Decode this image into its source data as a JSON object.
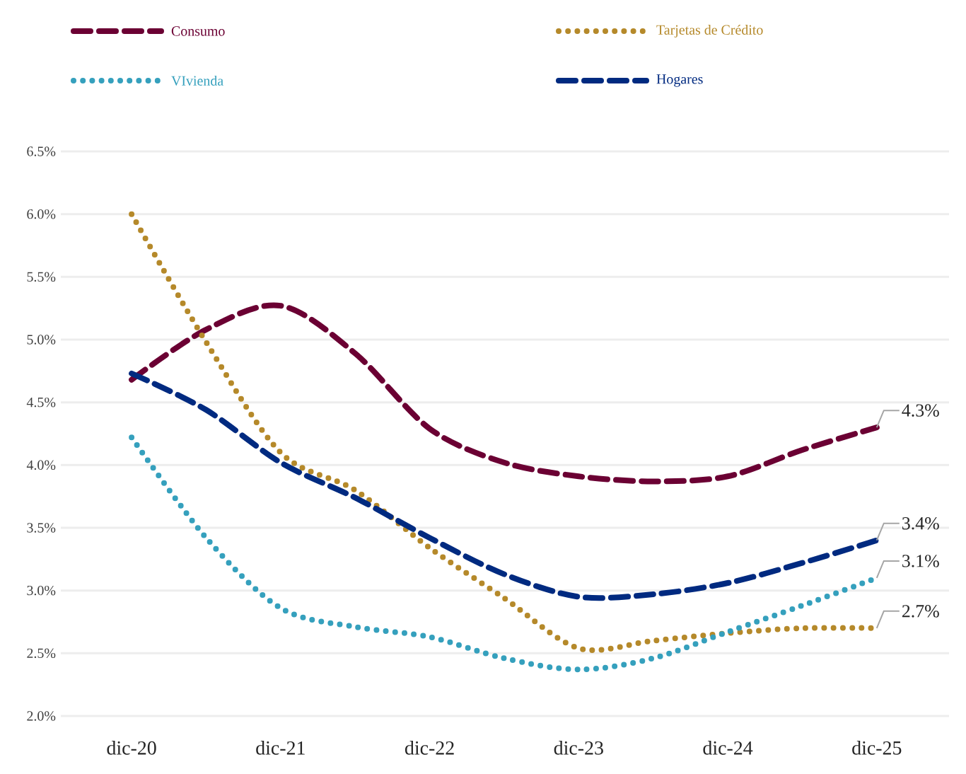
{
  "chart_data": {
    "type": "line",
    "categories": [
      "dic-20",
      null,
      "dic-21",
      null,
      "dic-22",
      null,
      "dic-23",
      null,
      "dic-24",
      null,
      "dic-25"
    ],
    "series": [
      {
        "name": "Consumo",
        "color": "#6b0033",
        "line_style": "dashed",
        "values": [
          4.68,
          5.08,
          5.27,
          4.89,
          4.29,
          4.02,
          3.91,
          3.87,
          3.91,
          4.12,
          4.3
        ],
        "value_labels": [
          null,
          null,
          null,
          null,
          null,
          null,
          null,
          null,
          null,
          null,
          "4.3%"
        ]
      },
      {
        "name": "Tarjetas de Crédito",
        "color": "#b5892a",
        "line_style": "dotted",
        "values": [
          6.0,
          4.98,
          4.1,
          3.8,
          3.34,
          2.94,
          2.54,
          2.6,
          2.66,
          2.7,
          2.7
        ],
        "value_labels": [
          null,
          null,
          null,
          null,
          null,
          null,
          null,
          null,
          null,
          null,
          "2.7%"
        ]
      },
      {
        "name": "VIvienda",
        "color": "#35a0bd",
        "line_style": "dotted",
        "values": [
          4.22,
          3.42,
          2.86,
          2.71,
          2.63,
          2.46,
          2.37,
          2.46,
          2.67,
          2.88,
          3.1
        ],
        "value_labels": [
          null,
          null,
          null,
          null,
          null,
          null,
          null,
          null,
          null,
          null,
          "3.1%"
        ]
      },
      {
        "name": "Hogares",
        "color": "#002a80",
        "line_style": "dashed",
        "values": [
          4.73,
          4.44,
          4.02,
          3.74,
          3.42,
          3.13,
          2.95,
          2.97,
          3.06,
          3.22,
          3.4
        ],
        "value_labels": [
          null,
          null,
          null,
          null,
          null,
          null,
          null,
          null,
          null,
          null,
          "3.4%"
        ]
      }
    ],
    "ylim": [
      2.0,
      6.5
    ],
    "yticks": [
      {
        "value": 2.0,
        "label": "2.0%"
      },
      {
        "value": 2.5,
        "label": "2.5%"
      },
      {
        "value": 3.0,
        "label": "3.0%"
      },
      {
        "value": 3.5,
        "label": "3.5%"
      },
      {
        "value": 4.0,
        "label": "4.0%"
      },
      {
        "value": 4.5,
        "label": "4.5%"
      },
      {
        "value": 5.0,
        "label": "5.0%"
      },
      {
        "value": 5.5,
        "label": "5.5%"
      },
      {
        "value": 6.0,
        "label": "6.0%"
      },
      {
        "value": 6.5,
        "label": "6.5%"
      }
    ],
    "grid": "y",
    "legend": "top",
    "marker": "none"
  }
}
